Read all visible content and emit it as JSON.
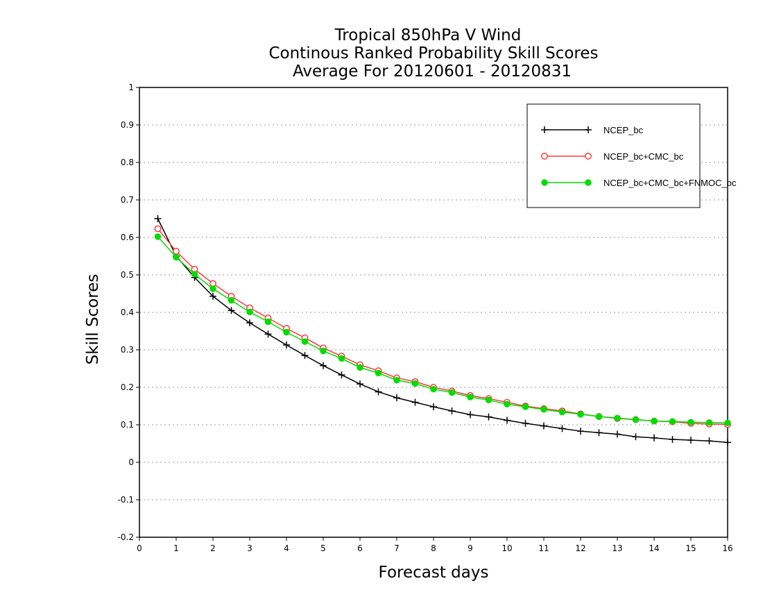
{
  "chart_data": {
    "type": "line",
    "title_lines": [
      "Tropical 850hPa V Wind",
      "Continous Ranked Probability Skill Scores",
      "Average For 20120601 - 20120831"
    ],
    "xlabel": "Forecast days",
    "ylabel": "Skill Scores",
    "xlim": [
      0,
      16
    ],
    "ylim": [
      -0.2,
      1
    ],
    "x_ticks": [
      "0",
      "1",
      "2",
      "3",
      "4",
      "5",
      "6",
      "7",
      "8",
      "9",
      "10",
      "11",
      "12",
      "13",
      "14",
      "15",
      "16"
    ],
    "y_ticks": [
      "1",
      "0.9",
      "0.8",
      "0.7",
      "0.6",
      "0.5",
      "0.4",
      "0.3",
      "0.2",
      "0.1",
      "0",
      "-0.1",
      "-0.2"
    ],
    "grid": "horizontal-dotted",
    "legend_position": "top-right",
    "x": [
      0.5,
      1,
      1.5,
      2,
      2.5,
      3,
      3.5,
      4,
      4.5,
      5,
      5.5,
      6,
      6.5,
      7,
      7.5,
      8,
      8.5,
      9,
      9.5,
      10,
      10.5,
      11,
      11.5,
      12,
      12.5,
      13,
      13.5,
      14,
      14.5,
      15,
      15.5,
      16
    ],
    "series": [
      {
        "name": "NCEP_bc",
        "color": "#000000",
        "marker": "plus",
        "values": [
          0.65,
          0.55,
          0.493,
          0.443,
          0.405,
          0.372,
          0.342,
          0.313,
          0.285,
          0.258,
          0.233,
          0.209,
          0.188,
          0.172,
          0.16,
          0.148,
          0.137,
          0.127,
          0.121,
          0.112,
          0.104,
          0.097,
          0.09,
          0.083,
          0.079,
          0.075,
          0.068,
          0.065,
          0.061,
          0.059,
          0.057,
          0.053
        ]
      },
      {
        "name": "NCEP_bc+CMC_bc",
        "color": "#ff3b3b",
        "marker": "open-circle",
        "values": [
          0.623,
          0.563,
          0.515,
          0.477,
          0.443,
          0.412,
          0.385,
          0.357,
          0.332,
          0.305,
          0.283,
          0.26,
          0.244,
          0.225,
          0.215,
          0.2,
          0.19,
          0.178,
          0.17,
          0.16,
          0.15,
          0.143,
          0.137,
          0.129,
          0.122,
          0.117,
          0.114,
          0.11,
          0.108,
          0.104,
          0.102,
          0.101
        ]
      },
      {
        "name": "NCEP_bc+CMC_bc+FNMOC_bc",
        "color": "#00dd00",
        "marker": "filled-circle",
        "values": [
          0.602,
          0.547,
          0.502,
          0.463,
          0.432,
          0.401,
          0.375,
          0.347,
          0.322,
          0.297,
          0.277,
          0.253,
          0.238,
          0.219,
          0.21,
          0.195,
          0.186,
          0.174,
          0.166,
          0.155,
          0.148,
          0.141,
          0.134,
          0.128,
          0.122,
          0.118,
          0.114,
          0.11,
          0.109,
          0.107,
          0.106,
          0.105
        ]
      }
    ]
  }
}
